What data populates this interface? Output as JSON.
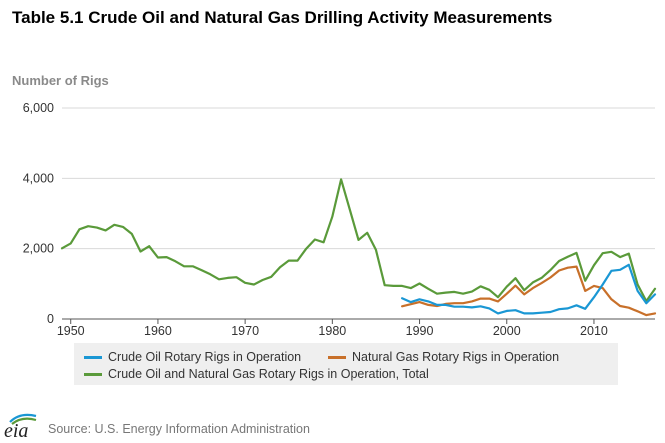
{
  "colors": {
    "oil": "#1a97d4",
    "gas": "#c8702a",
    "total": "#5a9a3a",
    "grid": "#d9d9d9",
    "axis": "#555555"
  },
  "footer": {
    "logo_text": "eia",
    "source": "Source: U.S. Energy Information Administration"
  },
  "chart_data": {
    "type": "line",
    "title": "Table 5.1 Crude Oil and Natural Gas Drilling Activity Measurements",
    "ylabel": "Number of Rigs",
    "xlabel": "",
    "xlim": [
      1949,
      2017
    ],
    "ylim": [
      0,
      6000
    ],
    "xticks": [
      1950,
      1960,
      1970,
      1980,
      1990,
      2000,
      2010
    ],
    "xtick_labels": [
      "1950",
      "1960",
      "1970",
      "1980",
      "1990",
      "2000",
      "2010"
    ],
    "yticks": [
      0,
      2000,
      4000,
      6000
    ],
    "ytick_labels": [
      "0",
      "2,000",
      "4,000",
      "6,000"
    ],
    "grid": "horizontal",
    "legend_position": "bottom",
    "series": [
      {
        "name": "Crude Oil Rotary Rigs in Operation",
        "color_key": "oil",
        "x": [
          1988,
          1989,
          1990,
          1991,
          1992,
          1993,
          1994,
          1995,
          1996,
          1997,
          1998,
          1999,
          2000,
          2001,
          2002,
          2003,
          2004,
          2005,
          2006,
          2007,
          2008,
          2009,
          2010,
          2011,
          2012,
          2013,
          2014,
          2015,
          2016,
          2017
        ],
        "y": [
          590,
          480,
          560,
          500,
          400,
          400,
          350,
          350,
          330,
          360,
          300,
          160,
          230,
          250,
          160,
          160,
          180,
          200,
          280,
          300,
          390,
          290,
          620,
          980,
          1370,
          1400,
          1540,
          800,
          450,
          700
        ]
      },
      {
        "name": "Natural Gas Rotary Rigs in Operation",
        "color_key": "gas",
        "x": [
          1988,
          1989,
          1990,
          1991,
          1992,
          1993,
          1994,
          1995,
          1996,
          1997,
          1998,
          1999,
          2000,
          2001,
          2002,
          2003,
          2004,
          2005,
          2006,
          2007,
          2008,
          2009,
          2010,
          2011,
          2012,
          2013,
          2014,
          2015,
          2016,
          2017
        ],
        "y": [
          360,
          420,
          480,
          400,
          370,
          430,
          450,
          450,
          500,
          580,
          580,
          500,
          720,
          950,
          700,
          880,
          1020,
          1180,
          1380,
          1460,
          1490,
          800,
          940,
          880,
          560,
          370,
          320,
          220,
          110,
          160
        ]
      },
      {
        "name": "Crude Oil and Natural Gas Rotary Rigs in Operation, Total",
        "color_key": "total",
        "x": [
          1949,
          1950,
          1951,
          1952,
          1953,
          1954,
          1955,
          1956,
          1957,
          1958,
          1959,
          1960,
          1961,
          1962,
          1963,
          1964,
          1965,
          1966,
          1967,
          1968,
          1969,
          1970,
          1971,
          1972,
          1973,
          1974,
          1975,
          1976,
          1977,
          1978,
          1979,
          1980,
          1981,
          1982,
          1983,
          1984,
          1985,
          1986,
          1987,
          1988,
          1989,
          1990,
          1991,
          1992,
          1993,
          1994,
          1995,
          1996,
          1997,
          1998,
          1999,
          2000,
          2001,
          2002,
          2003,
          2004,
          2005,
          2006,
          2007,
          2008,
          2009,
          2010,
          2011,
          2012,
          2013,
          2014,
          2015,
          2016,
          2017
        ],
        "y": [
          2010,
          2150,
          2550,
          2640,
          2600,
          2520,
          2680,
          2620,
          2420,
          1920,
          2070,
          1750,
          1760,
          1640,
          1500,
          1500,
          1390,
          1270,
          1130,
          1170,
          1190,
          1030,
          980,
          1110,
          1200,
          1470,
          1660,
          1660,
          2000,
          2260,
          2180,
          2910,
          3970,
          3110,
          2250,
          2450,
          1970,
          960,
          940,
          940,
          880,
          1010,
          860,
          720,
          750,
          770,
          720,
          780,
          930,
          830,
          620,
          920,
          1160,
          820,
          1040,
          1170,
          1390,
          1650,
          1770,
          1880,
          1090,
          1530,
          1870,
          1910,
          1760,
          1860,
          980,
          510,
          860
        ]
      }
    ]
  }
}
